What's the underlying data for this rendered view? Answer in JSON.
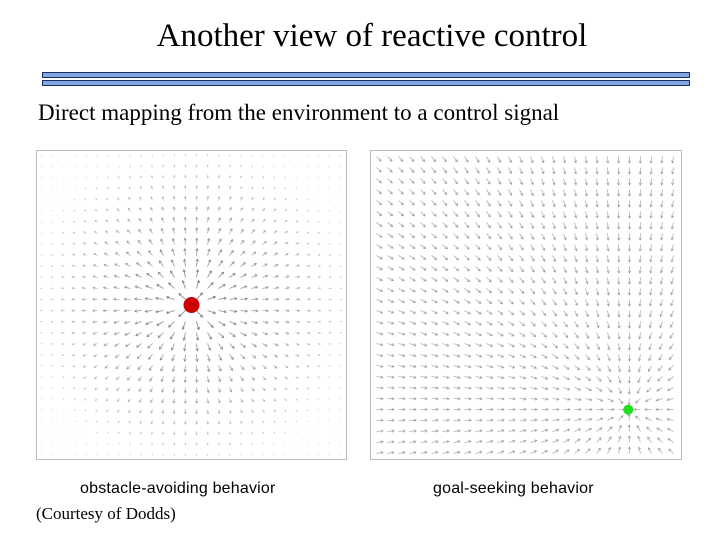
{
  "slide": {
    "title": "Another view of reactive control",
    "subtitle": "Direct mapping from the environment to a control signal",
    "credit": "(Courtesy of Dodds)"
  },
  "panels": [
    {
      "caption": "obstacle-avoiding  behavior",
      "field_type": "repulsive",
      "marker_color": "#cc0000",
      "marker": {
        "x": 0.5,
        "y": 0.5
      }
    },
    {
      "caption": "goal-seeking  behavior",
      "field_type": "attractive",
      "marker_color": "#22dd22",
      "marker": {
        "x": 0.83,
        "y": 0.84
      }
    }
  ],
  "colors": {
    "rule_fill": "#7fa6dd",
    "rule_border": "#1b2f66",
    "arrow": "#6f6f6f"
  }
}
